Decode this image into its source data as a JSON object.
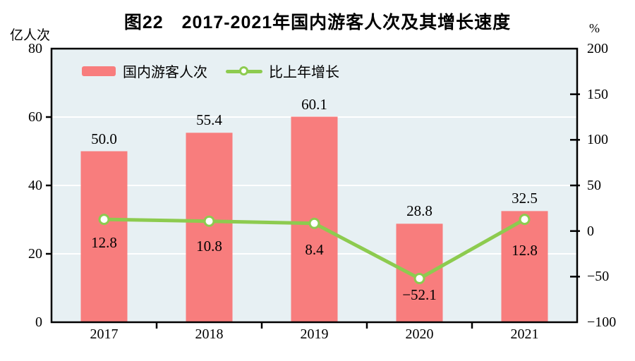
{
  "chart_data": {
    "type": "bar+line combo",
    "title": "图22　2017-2021年国内游客人次及其增长速度",
    "categories": [
      "2017",
      "2018",
      "2019",
      "2020",
      "2021"
    ],
    "series": [
      {
        "name": "国内游客人次",
        "type": "bar",
        "axis": "left",
        "color": "#F87D7D",
        "values": [
          50.0,
          55.4,
          60.1,
          28.8,
          32.5
        ],
        "labels": [
          "50.0",
          "55.4",
          "60.1",
          "28.8",
          "32.5"
        ]
      },
      {
        "name": "比上年增长",
        "type": "line",
        "axis": "right",
        "color": "#8DCB4F",
        "marker_fill": "#FFFFFF",
        "values": [
          12.8,
          10.8,
          8.4,
          -52.1,
          12.8
        ],
        "labels": [
          "12.8",
          "10.8",
          "8.4",
          "−52.1",
          "12.8"
        ]
      }
    ],
    "left_axis": {
      "unit": "亿人次",
      "min": 0,
      "max": 80,
      "tick_values": [
        80,
        60,
        40,
        20,
        0
      ],
      "tick_labels": [
        "80",
        "60",
        "40",
        "20",
        "0"
      ],
      "grid_values": [
        60,
        40,
        20
      ]
    },
    "right_axis": {
      "unit": "%",
      "min": -100,
      "max": 200,
      "tick_values": [
        200,
        150,
        100,
        50,
        0,
        -50,
        -100
      ],
      "tick_labels": [
        "200",
        "150",
        "100",
        "50",
        "0",
        "−50",
        "−100"
      ]
    },
    "style": {
      "plot_bg": "#E7F0F3",
      "grid_color": "#FFFFFF",
      "axis_color": "#000000",
      "grid": "horizontal-only",
      "legend_position": "top-left-inside"
    }
  }
}
